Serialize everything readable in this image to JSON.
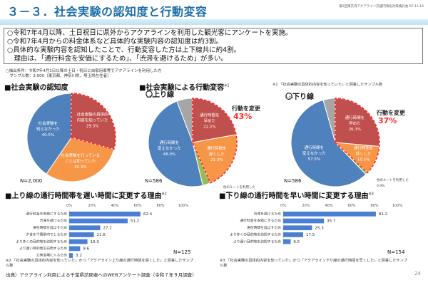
{
  "header": {
    "title": "３－３．社会実験の認知度と行動変容",
    "meeting": "第5回東京湾アクアライン交通円滑化対策検討会 R7.11.14"
  },
  "summary": [
    "○令和7年4月以降、土日祝日に県外からアクアラインを利用した観光客にアンケートを実施。",
    "○令和7年4月からの料金体系など具体的な実験内容の認知度は約3割。",
    "○具体的な実験内容を認知したことで、行動変容した方は上下線共に約4割。",
    "　理由は、「通行料金を安価にするため」、「渋滞を避けるため」が多い。"
  ],
  "conditions": [
    "○抽出条件：令和7年4月1日以降の土日・祝日に自家用車等でアクアラインを利用した方",
    "　サンプル数：2,000（東京都、神奈川県、埼玉県在住者）"
  ],
  "awareness": {
    "heading": "■社会実験の認知度",
    "n": "N=2,000"
  },
  "behavior": {
    "heading": "■社会実験による行動変容",
    "heading_note": "※1",
    "note": "※1 「社会実験の具体的内容を知っていた」と回答したサンプル数",
    "up": {
      "label": "〇上り線",
      "n": "N=586",
      "change_label": "行動を変更",
      "change_value": "43%"
    },
    "down": {
      "label": "〇下り線",
      "n": "N=586",
      "change_label": "行動を変更",
      "change_value": "37%"
    }
  },
  "colors": {
    "red": "#c0504d",
    "orange": "#f79646",
    "blue": "#4f81bd",
    "gray": "#a6a6a6",
    "green": "#9bbb59",
    "bar": "#4a7fd4",
    "accent_red": "#ff2a2a",
    "title_blue": "#1b6fa8"
  },
  "chart_data": [
    {
      "type": "pie",
      "title": "社会実験の認知度",
      "slices": [
        {
          "label": "社会実験の具体的内容を知っていた",
          "value": 29.3,
          "color": "#c0504d",
          "highlight": true
        },
        {
          "label": "社会実験を行っていることは知っていた",
          "value": 30.3,
          "color": "#f79646"
        },
        {
          "label": "社会実験を知らなかった",
          "value": 40.5,
          "color": "#4f81bd"
        }
      ],
      "n": "N=2,000"
    },
    {
      "type": "pie",
      "title": "社会実験による行動変容 上り線",
      "slices": [
        {
          "label": "通行時間を早めた",
          "value": 22.2,
          "color": "#c0504d",
          "highlight": true
        },
        {
          "label": "通行時間を遅くした",
          "value": 21.3,
          "color": "#f79646",
          "highlight": true
        },
        {
          "label": "他のルートを利用した",
          "value": 2.9,
          "color": "#9bbb59"
        },
        {
          "label": "通行時間を変えなかった",
          "value": 48.0,
          "color": "#4f81bd"
        },
        {
          "label": "覚えていない",
          "value": 5.8,
          "color": "#a6a6a6"
        }
      ],
      "n": "N=586"
    },
    {
      "type": "pie",
      "title": "社会実験による行動変容 下り線",
      "slices": [
        {
          "label": "通行時間を早めた",
          "value": 26.3,
          "color": "#c0504d",
          "highlight": true
        },
        {
          "label": "通行時間を遅くした",
          "value": 10.5,
          "color": "#f79646",
          "highlight": true
        },
        {
          "label": "他のルートを利用した",
          "value": 0.9,
          "color": "#9bbb59"
        },
        {
          "label": "通行時間を変えなかった",
          "value": 57.5,
          "color": "#4f81bd"
        },
        {
          "label": "覚えていない",
          "value": 4.4,
          "color": "#a6a6a6"
        }
      ],
      "n": "N=586"
    },
    {
      "type": "bar",
      "orientation": "horizontal",
      "title": "■上り線の通行時間帯を遅い時間に変更する理由",
      "title_note": "※2",
      "categories": [
        "通行料金を安価にするため",
        "渋滞を避けるため",
        "滞在時間を延ばすため",
        "夕食を千葉県内でとるため",
        "より多くの目的地を訪問するため",
        "より遠い目的地を訪問するため",
        "公衆浴場に入るため"
      ],
      "values": [
        62.4,
        51.2,
        27.2,
        21.6,
        16.0,
        9.6,
        3.2
      ],
      "xticks": [
        "0%",
        "20%",
        "40%",
        "60%",
        "80%",
        "100%"
      ],
      "xlim": [
        0,
        100
      ],
      "n": "N=125",
      "note": "※2 「社会実験の具体的内容を知っていた」かつ「アクアライン上り線の通行時間を遅くした」と回答したサンプル数"
    },
    {
      "type": "bar",
      "orientation": "horizontal",
      "title": "■下り線の通行時間を早い時間に変更する理由",
      "title_note": "※3",
      "categories": [
        "渋滞を避けるため",
        "通行料金を安価にするため",
        "滞在時間を延ばすため",
        "より多くの目的地を訪問するため",
        "より遠い目的地を訪問するため"
      ],
      "values": [
        81.2,
        35.7,
        25.3,
        17.5,
        6.5
      ],
      "xticks": [
        "0%",
        "20%",
        "40%",
        "60%",
        "80%",
        "100%"
      ],
      "xlim": [
        0,
        100
      ],
      "n": "N=154",
      "note": "※3 「社会実験の具体的内容を知っていた」かつ「アクアライン下り線の通行時間を早くした」と回答したサンプル数"
    }
  ],
  "footer": {
    "source": "出典）アクアライン利用による千葉県訪問者へのWEBアンケート調査（令和７年９月調査）",
    "page": "24"
  }
}
